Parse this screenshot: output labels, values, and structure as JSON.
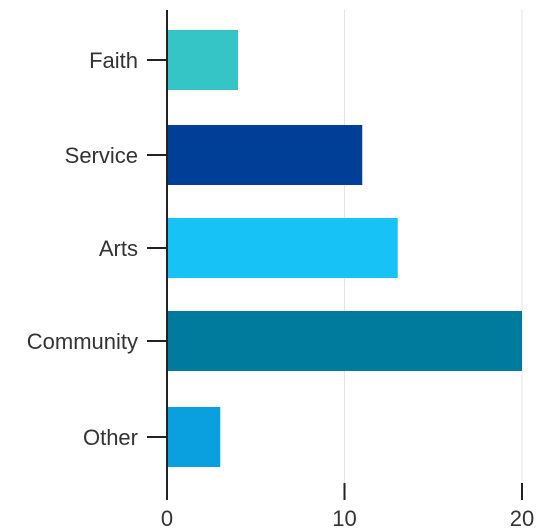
{
  "chart_data": {
    "type": "bar",
    "orientation": "horizontal",
    "categories": [
      "Faith",
      "Service",
      "Arts",
      "Community",
      "Other"
    ],
    "values": [
      4,
      11,
      13,
      20,
      3
    ],
    "colors": [
      "#36c5c6",
      "#003f98",
      "#17c2f7",
      "#007b9e",
      "#0aa0df"
    ],
    "title": "",
    "xlabel": "",
    "ylabel": "",
    "xlim": [
      0,
      20
    ],
    "xticks": [
      0,
      10,
      20
    ],
    "grid": true,
    "legend": "none"
  }
}
